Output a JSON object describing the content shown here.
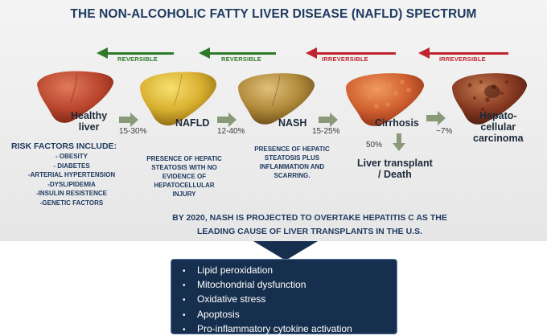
{
  "title": "THE NON-ALCOHOLIC FATTY LIVER DISEASE (NAFLD) SPECTRUM",
  "arrows": [
    {
      "label": "REVERSIBLE",
      "type": "reversible",
      "color": "#2f7a2a"
    },
    {
      "label": "REVERSIBLE",
      "type": "reversible",
      "color": "#2f7a2a"
    },
    {
      "label": "IRREVERSIBLE",
      "type": "irreversible",
      "color": "#c0242c"
    },
    {
      "label": "IRREVERSIBLE",
      "type": "irreversible",
      "color": "#c0242c"
    }
  ],
  "stages": [
    {
      "name_line1": "Healthy",
      "name_line2": "liver",
      "color": "#c04a30"
    },
    {
      "name_line1": "NAFLD",
      "name_line2": "",
      "color": "#d8b030"
    },
    {
      "name_line1": "NASH",
      "name_line2": "",
      "color": "#b08a3a"
    },
    {
      "name_line1": "Cirrhosis",
      "name_line2": "",
      "color": "#d06030"
    },
    {
      "name_line1": "Hepato-",
      "name_line2": "cellular",
      "name_line3": "carcinoma",
      "color": "#8a3a22"
    }
  ],
  "transitions": [
    "15-30%",
    "12-40%",
    "15-25%",
    "~7%"
  ],
  "cirrhosis_outcome": {
    "percent": "50%",
    "line1": "Liver transplant",
    "line2": "/ Death"
  },
  "risk_factors": {
    "title": "RISK FACTORS INCLUDE:",
    "items": [
      "- OBESITY",
      "- DIABETES",
      "-ARTERIAL HYPERTENSION",
      "-DYSLIPIDEMIA",
      "-INSULIN RESISTENCE",
      "-GENETIC FACTORS"
    ]
  },
  "descriptions": {
    "nafld": [
      "PRESENCE OF HEPATIC",
      "STEATOSIS WITH NO",
      "EVIDENCE OF",
      "HEPATOCELLULAR",
      "INJURY"
    ],
    "nash": [
      "PRESENCE OF HEPATIC",
      "STEATOSIS PLUS",
      "INFLAMMATION AND",
      "SCARRING."
    ]
  },
  "projection": [
    "BY 2020, NASH IS PROJECTED TO OVERTAKE HEPATITIS C AS THE",
    "LEADING CAUSE OF LIVER TRANSPLANTS IN THE U.S."
  ],
  "mechanisms": {
    "bullet": "•",
    "items": [
      "Lipid peroxidation",
      "Mitochondrial dysfunction",
      "Oxidative stress",
      "Apoptosis",
      "Pro-inflammatory cytokine activation"
    ]
  },
  "colors": {
    "navy": "#1f3a60",
    "green": "#2f7a2a",
    "red": "#c0242c",
    "box": "#172f4e",
    "panel": "#ececec"
  }
}
